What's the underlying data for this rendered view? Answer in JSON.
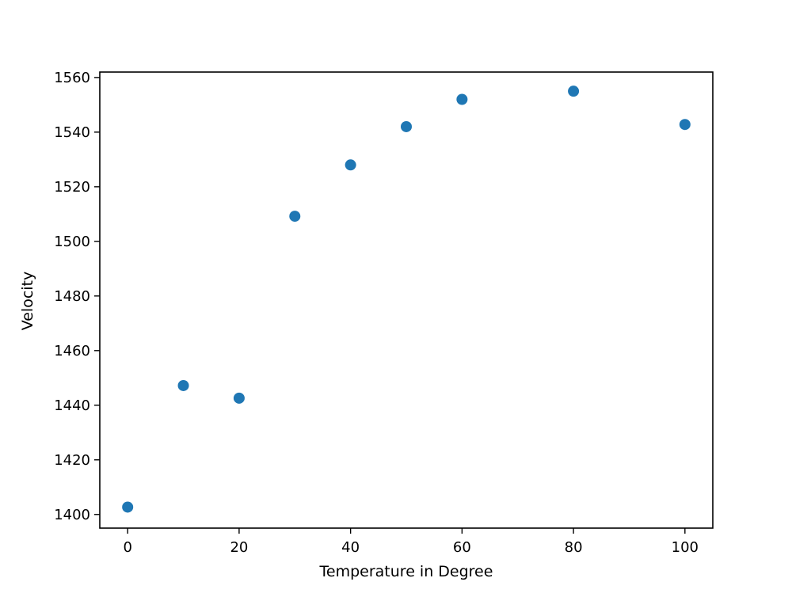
{
  "chart_data": {
    "type": "scatter",
    "title": "",
    "xlabel": "Temperature in Degree",
    "ylabel": "Velocity",
    "xlim": [
      -5,
      105
    ],
    "ylim": [
      1395,
      1562
    ],
    "xticks": [
      0,
      20,
      40,
      60,
      80,
      100
    ],
    "yticks": [
      1400,
      1420,
      1440,
      1460,
      1480,
      1500,
      1520,
      1540,
      1560
    ],
    "grid": false,
    "legend": "none",
    "marker_color": "#1f77b4",
    "series": [
      {
        "x": [
          0,
          10,
          20,
          30,
          40,
          50,
          60,
          80,
          100
        ],
        "y": [
          1402.7,
          1447.2,
          1442.6,
          1509.2,
          1528.0,
          1542.0,
          1552.0,
          1555.0,
          1542.8
        ]
      }
    ]
  }
}
